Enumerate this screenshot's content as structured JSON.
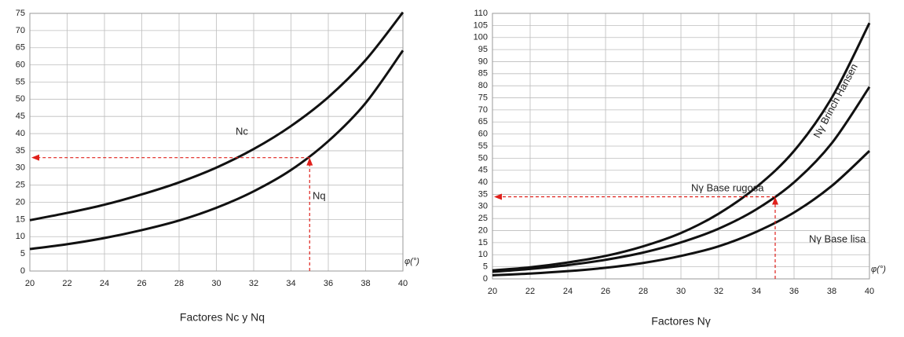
{
  "chart_data": [
    {
      "type": "line",
      "title": "Factores Nc y Nq",
      "x_label": "φ(°)",
      "x": [
        20,
        22,
        24,
        26,
        28,
        30,
        32,
        34,
        36,
        38,
        40
      ],
      "series": [
        {
          "name": "Nc",
          "color": "#111111",
          "values": [
            14.8,
            16.9,
            19.3,
            22.3,
            25.8,
            30.1,
            35.5,
            42.2,
            50.6,
            61.4,
            75.3
          ]
        },
        {
          "name": "Nq",
          "color": "#111111",
          "values": [
            6.4,
            7.8,
            9.6,
            11.9,
            14.7,
            18.4,
            23.2,
            29.4,
            37.8,
            48.9,
            64.2
          ]
        }
      ],
      "xlim": [
        20,
        40
      ],
      "xticks": [
        20,
        22,
        24,
        26,
        28,
        30,
        32,
        34,
        36,
        38,
        40
      ],
      "ylim": [
        0,
        75
      ],
      "yticks": [
        0,
        5,
        10,
        15,
        20,
        25,
        30,
        35,
        40,
        45,
        50,
        55,
        60,
        65,
        70,
        75
      ],
      "grid": true,
      "marker": {
        "x": 35,
        "y": 33,
        "color": "#e0201b"
      }
    },
    {
      "type": "line",
      "title": "Factores Nγ",
      "x_label": "φ(°)",
      "x": [
        20,
        22,
        24,
        26,
        28,
        30,
        32,
        34,
        36,
        38,
        40
      ],
      "series": [
        {
          "name": "Nγ Base rugosa",
          "color": "#111111",
          "values": [
            3.5,
            4.8,
            6.8,
            9.5,
            13.5,
            19,
            27,
            38,
            53,
            75,
            106
          ]
        },
        {
          "name": "Nγ Brinch Hansen",
          "color": "#111111",
          "values": [
            2.9,
            4.1,
            5.7,
            7.9,
            10.9,
            15.1,
            20.8,
            28.8,
            40,
            56.2,
            79.5
          ]
        },
        {
          "name": "Nγ Base lisa",
          "color": "#111111",
          "values": [
            1.5,
            2.2,
            3.2,
            4.6,
            6.6,
            9.5,
            13.5,
            19.5,
            27.5,
            38.5,
            53
          ]
        }
      ],
      "xlim": [
        20,
        40
      ],
      "xticks": [
        20,
        22,
        24,
        26,
        28,
        30,
        32,
        34,
        36,
        38,
        40
      ],
      "ylim": [
        0,
        110
      ],
      "yticks": [
        0,
        5,
        10,
        15,
        20,
        25,
        30,
        35,
        40,
        45,
        50,
        55,
        60,
        65,
        70,
        75,
        80,
        85,
        90,
        95,
        100,
        105,
        110
      ],
      "grid": true,
      "marker": {
        "x": 35,
        "y": 34,
        "color": "#e0201b"
      }
    }
  ]
}
